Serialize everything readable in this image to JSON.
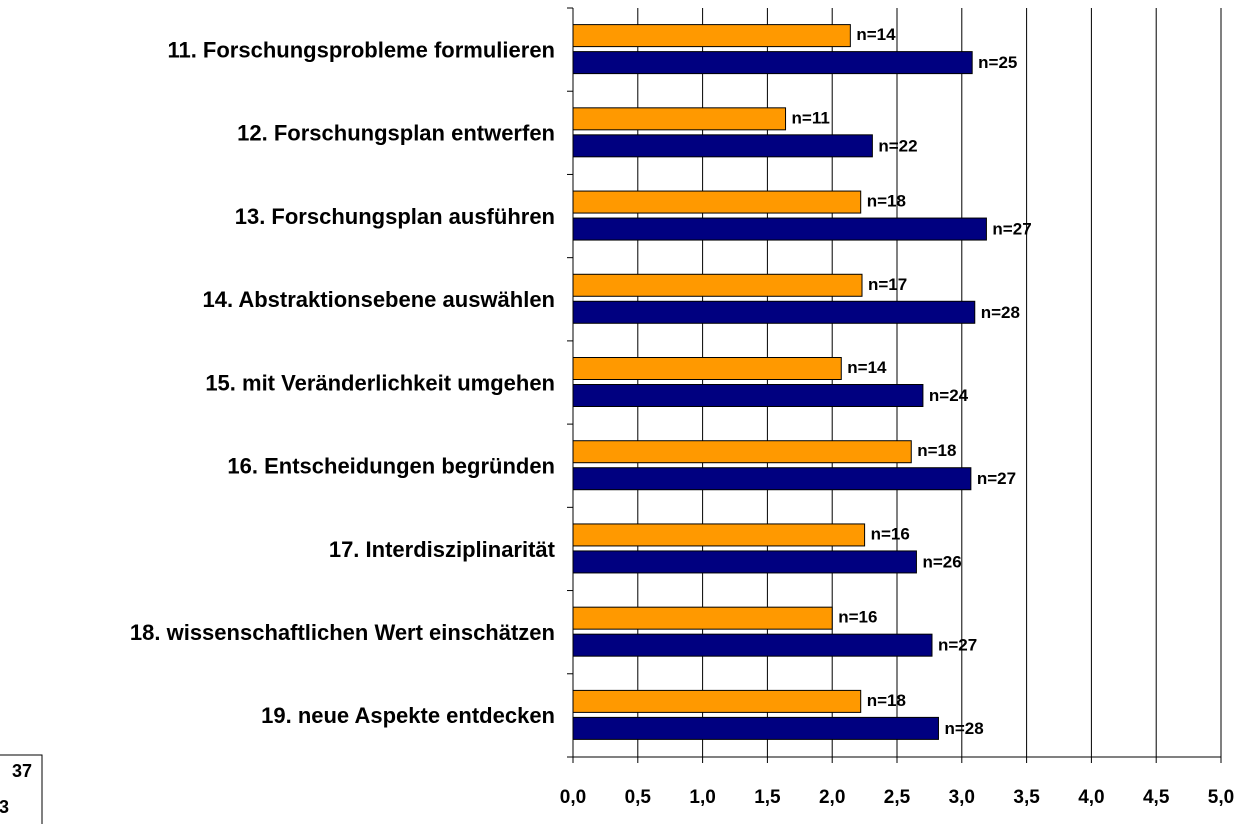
{
  "chart_data": {
    "type": "bar",
    "orientation": "horizontal",
    "categories": [
      "11. Forschungsprobleme formulieren",
      "12. Forschungsplan entwerfen",
      "13. Forschungsplan ausführen",
      "14. Abstraktionsebene auswählen",
      "15. mit Veränderlichkeit umgehen",
      "16. Entscheidungen begründen",
      "17. Interdisziplinarität",
      "18. wissenschaftlichen Wert einschätzen",
      "19. neue Aspekte entdecken"
    ],
    "series": [
      {
        "color": "#ff9900",
        "values": [
          2.14,
          1.64,
          2.22,
          2.23,
          2.07,
          2.61,
          2.25,
          2.0,
          2.22
        ],
        "annotations": [
          "n=14",
          "n=11",
          "n=18",
          "n=17",
          "n=14",
          "n=18",
          "n=16",
          "n=16",
          "n=18"
        ]
      },
      {
        "color": "#000080",
        "values": [
          3.08,
          2.31,
          3.19,
          3.1,
          2.7,
          3.07,
          2.65,
          2.77,
          2.82
        ],
        "annotations": [
          "n=25",
          "n=22",
          "n=27",
          "n=28",
          "n=24",
          "n=27",
          "n=26",
          "n=27",
          "n=28"
        ]
      }
    ],
    "xlim": [
      0,
      5
    ],
    "xticks": [
      {
        "value": 0,
        "label": "0,0"
      },
      {
        "value": 0.5,
        "label": "0,5"
      },
      {
        "value": 1,
        "label": "1,0"
      },
      {
        "value": 1.5,
        "label": "1,5"
      },
      {
        "value": 2,
        "label": "2,0"
      },
      {
        "value": 2.5,
        "label": "2,5"
      },
      {
        "value": 3,
        "label": "3,0"
      },
      {
        "value": 3.5,
        "label": "3,5"
      },
      {
        "value": 4,
        "label": "4,0"
      },
      {
        "value": 4.5,
        "label": "4,5"
      },
      {
        "value": 5,
        "label": "5,0"
      }
    ],
    "grid": true,
    "corner_texts": [
      "37",
      "3"
    ]
  }
}
